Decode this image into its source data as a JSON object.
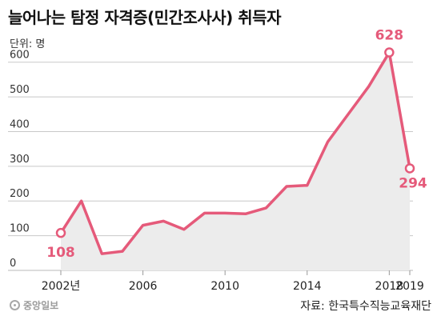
{
  "chart_data": {
    "type": "area",
    "title": "늘어나는 탐정 자격증(민간조사사) 취득자",
    "unit_label": "단위: 명",
    "source": "자료: 한국특수직능교육재단",
    "logo_text": "중앙일보",
    "x": [
      2002,
      2003,
      2004,
      2005,
      2006,
      2007,
      2008,
      2009,
      2010,
      2011,
      2012,
      2013,
      2014,
      2015,
      2016,
      2017,
      2018,
      2019
    ],
    "values": [
      108,
      200,
      48,
      55,
      130,
      142,
      118,
      165,
      165,
      163,
      180,
      242,
      245,
      370,
      450,
      530,
      628,
      294
    ],
    "x_tick_values": [
      2002,
      2006,
      2010,
      2014,
      2018,
      2019
    ],
    "x_tick_labels": [
      "2002년",
      "2006",
      "2010",
      "2014",
      "2018",
      "2019"
    ],
    "y_ticks": [
      0,
      100,
      200,
      300,
      400,
      500,
      600
    ],
    "ylim": [
      0,
      650
    ],
    "data_labels": [
      {
        "x": 2002,
        "value": 108,
        "text": "108"
      },
      {
        "x": 2018,
        "value": 628,
        "text": "628"
      },
      {
        "x": 2019,
        "value": 294,
        "text": "294"
      }
    ],
    "grid": true,
    "colors": {
      "line": "#e55a7a",
      "fill": "#ececec",
      "grid": "#c8c8c8",
      "label": "#e55a7a"
    }
  }
}
